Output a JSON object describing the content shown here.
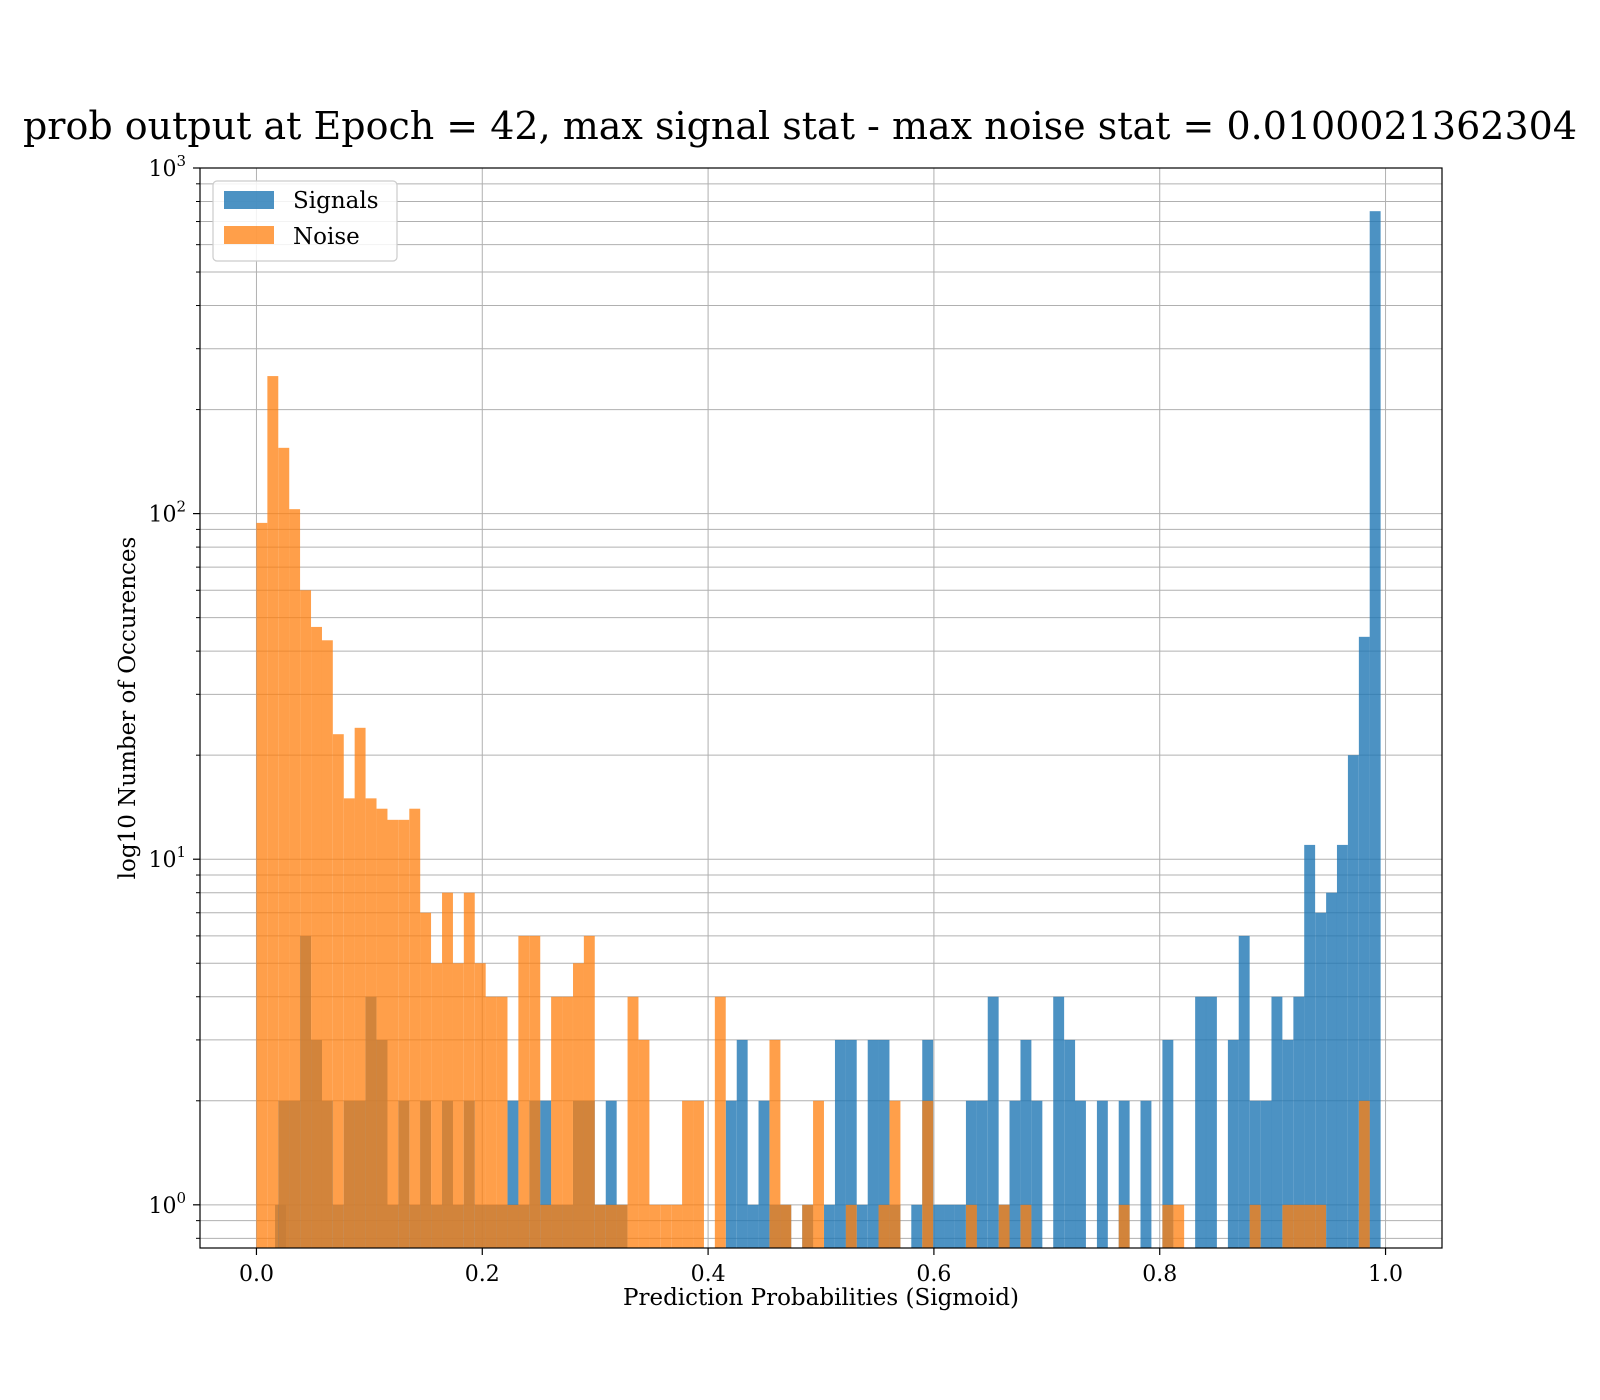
{
  "chart_data": {
    "type": "bar",
    "title": "prob output at Epoch = 42, max signal stat - max noise stat = 0.0100021362304",
    "xlabel": "Prediction Probabilities (Sigmoid)",
    "ylabel": "log10 Number of Occurences",
    "xlim": [
      -0.05,
      1.05
    ],
    "ylim": [
      0.75,
      1000
    ],
    "yscale": "log",
    "grid": true,
    "legend_position": "top-left",
    "x_ticks": [
      0.0,
      0.2,
      0.4,
      0.6,
      0.8,
      1.0
    ],
    "x_tick_labels": [
      "0.0",
      "0.2",
      "0.4",
      "0.6",
      "0.8",
      "1.0"
    ],
    "y_ticks": [
      1,
      10,
      100,
      1000
    ],
    "y_tick_labels": [
      {
        "base": "10",
        "exp": "0"
      },
      {
        "base": "10",
        "exp": "1"
      },
      {
        "base": "10",
        "exp": "2"
      },
      {
        "base": "10",
        "exp": "3"
      }
    ],
    "bin_width": 0.00966,
    "series": [
      {
        "name": "Signals",
        "color": "#1f77b4",
        "opacity": 0.8,
        "bins": [
          [
            0.0213,
            1
          ],
          [
            0.0242,
            2
          ],
          [
            0.0338,
            2
          ],
          [
            0.0435,
            6
          ],
          [
            0.0532,
            3
          ],
          [
            0.0628,
            2
          ],
          [
            0.0725,
            1
          ],
          [
            0.0822,
            2
          ],
          [
            0.0918,
            2
          ],
          [
            0.1015,
            4
          ],
          [
            0.1112,
            3
          ],
          [
            0.1208,
            1
          ],
          [
            0.1305,
            2
          ],
          [
            0.1402,
            1
          ],
          [
            0.1498,
            2
          ],
          [
            0.1595,
            1
          ],
          [
            0.1692,
            2
          ],
          [
            0.1788,
            1
          ],
          [
            0.1885,
            2
          ],
          [
            0.1982,
            1
          ],
          [
            0.2078,
            1
          ],
          [
            0.2175,
            1
          ],
          [
            0.2272,
            2
          ],
          [
            0.2368,
            1
          ],
          [
            0.2465,
            2
          ],
          [
            0.2562,
            2
          ],
          [
            0.2658,
            1
          ],
          [
            0.2755,
            1
          ],
          [
            0.2852,
            2
          ],
          [
            0.2948,
            2
          ],
          [
            0.3045,
            1
          ],
          [
            0.3142,
            2
          ],
          [
            0.3238,
            1
          ],
          [
            0.4205,
            2
          ],
          [
            0.4302,
            3
          ],
          [
            0.4398,
            1
          ],
          [
            0.4495,
            2
          ],
          [
            0.4592,
            1
          ],
          [
            0.4688,
            1
          ],
          [
            0.4882,
            1
          ],
          [
            0.5075,
            1
          ],
          [
            0.5172,
            3
          ],
          [
            0.5268,
            3
          ],
          [
            0.5365,
            1
          ],
          [
            0.5462,
            3
          ],
          [
            0.5558,
            3
          ],
          [
            0.5655,
            1
          ],
          [
            0.5848,
            1
          ],
          [
            0.5945,
            3
          ],
          [
            0.6042,
            1
          ],
          [
            0.6138,
            1
          ],
          [
            0.6235,
            1
          ],
          [
            0.6332,
            2
          ],
          [
            0.6428,
            2
          ],
          [
            0.6525,
            4
          ],
          [
            0.6622,
            1
          ],
          [
            0.6718,
            2
          ],
          [
            0.6815,
            3
          ],
          [
            0.6912,
            2
          ],
          [
            0.7105,
            4
          ],
          [
            0.7202,
            3
          ],
          [
            0.7298,
            2
          ],
          [
            0.7492,
            2
          ],
          [
            0.7685,
            2
          ],
          [
            0.7878,
            2
          ],
          [
            0.8072,
            3
          ],
          [
            0.8362,
            4
          ],
          [
            0.8458,
            4
          ],
          [
            0.8652,
            3
          ],
          [
            0.8748,
            6
          ],
          [
            0.8845,
            2
          ],
          [
            0.8942,
            2
          ],
          [
            0.9038,
            4
          ],
          [
            0.9135,
            3
          ],
          [
            0.9232,
            4
          ],
          [
            0.9328,
            11
          ],
          [
            0.9425,
            7
          ],
          [
            0.9522,
            8
          ],
          [
            0.9618,
            11
          ],
          [
            0.9715,
            20
          ],
          [
            0.9812,
            44
          ],
          [
            0.9908,
            750
          ]
        ]
      },
      {
        "name": "Noise",
        "color": "#ff7f0e",
        "opacity": 0.75,
        "bins": [
          [
            0.0048,
            94
          ],
          [
            0.0145,
            250
          ],
          [
            0.0242,
            155
          ],
          [
            0.0338,
            103
          ],
          [
            0.0435,
            60
          ],
          [
            0.0532,
            47
          ],
          [
            0.0628,
            43
          ],
          [
            0.0725,
            23
          ],
          [
            0.0822,
            15
          ],
          [
            0.0918,
            24
          ],
          [
            0.1015,
            15
          ],
          [
            0.1112,
            14
          ],
          [
            0.1208,
            13
          ],
          [
            0.1305,
            13
          ],
          [
            0.1402,
            14
          ],
          [
            0.1498,
            7
          ],
          [
            0.1595,
            5
          ],
          [
            0.1692,
            8
          ],
          [
            0.1788,
            5
          ],
          [
            0.1885,
            8
          ],
          [
            0.1982,
            5
          ],
          [
            0.2078,
            4
          ],
          [
            0.2175,
            4
          ],
          [
            0.2272,
            1
          ],
          [
            0.2368,
            6
          ],
          [
            0.2465,
            6
          ],
          [
            0.2562,
            1
          ],
          [
            0.2658,
            4
          ],
          [
            0.2755,
            4
          ],
          [
            0.2852,
            5
          ],
          [
            0.2948,
            6
          ],
          [
            0.3045,
            1
          ],
          [
            0.3142,
            1
          ],
          [
            0.3238,
            1
          ],
          [
            0.3335,
            4
          ],
          [
            0.3432,
            3
          ],
          [
            0.3528,
            1
          ],
          [
            0.3625,
            1
          ],
          [
            0.3722,
            1
          ],
          [
            0.3818,
            2
          ],
          [
            0.3915,
            2
          ],
          [
            0.4108,
            4
          ],
          [
            0.4592,
            3
          ],
          [
            0.4688,
            1
          ],
          [
            0.4882,
            1
          ],
          [
            0.4978,
            2
          ],
          [
            0.5268,
            1
          ],
          [
            0.5558,
            1
          ],
          [
            0.5655,
            2
          ],
          [
            0.5945,
            2
          ],
          [
            0.6332,
            1
          ],
          [
            0.6622,
            1
          ],
          [
            0.6815,
            1
          ],
          [
            0.7685,
            1
          ],
          [
            0.8072,
            1
          ],
          [
            0.8168,
            1
          ],
          [
            0.8845,
            1
          ],
          [
            0.9135,
            1
          ],
          [
            0.9232,
            1
          ],
          [
            0.9328,
            1
          ],
          [
            0.9425,
            1
          ],
          [
            0.9812,
            2
          ]
        ]
      }
    ]
  }
}
